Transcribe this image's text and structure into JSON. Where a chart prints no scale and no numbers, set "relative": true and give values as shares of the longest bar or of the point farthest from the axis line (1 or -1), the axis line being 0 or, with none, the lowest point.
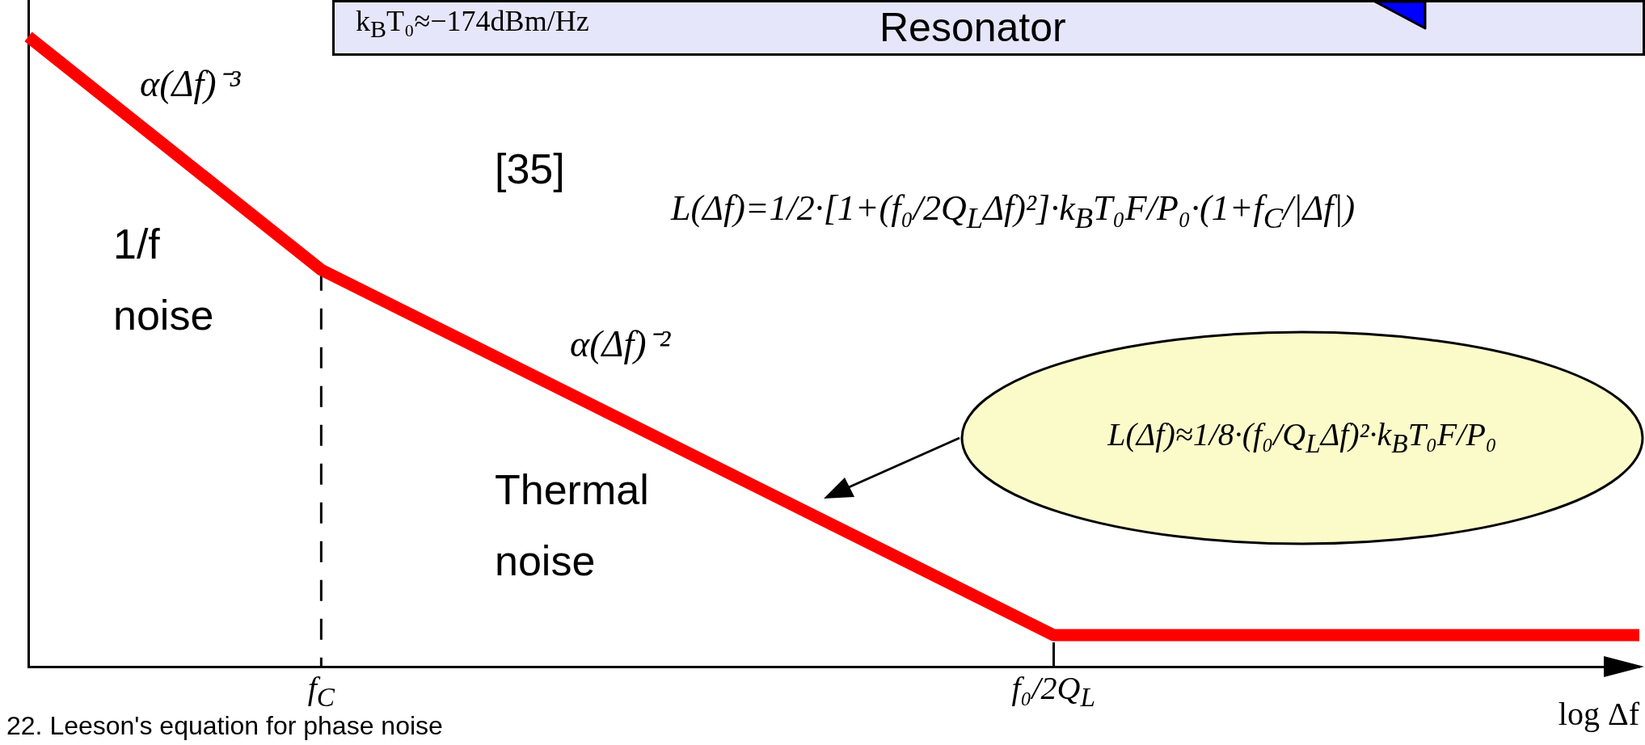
{
  "chart_data": {
    "type": "line",
    "relative": true,
    "xlabel": "log Δf",
    "categories": [
      null,
      null,
      "f$_{C}$",
      null,
      null,
      null,
      null,
      "f₀/2Q$_{L}$",
      null,
      null,
      null,
      null
    ],
    "values": [
      1,
      0.815,
      0.63,
      0.514,
      0.398,
      0.282,
      0.166,
      0.05,
      0.05,
      0.05,
      0.05,
      0.05
    ],
    "color": "#ff0000",
    "marker": "none",
    "ref_lines": [
      {
        "axis": "x",
        "value": "f$_{C}$",
        "line_style": "dashed",
        "color": "#000000"
      }
    ],
    "annotations": [
      "k$_{B}$T₀≈−174dBm/Hz",
      "Resonator",
      "α(Δf)⁻³",
      "[35]",
      "L(Δf)=1/2·[1+(f₀/2Q$_{L}$Δf)²]·k$_{B}$T₀F/P₀·(1+f$_{C}$/|Δf|)",
      "1/f\nnoise",
      "α(Δf)⁻²",
      "Thermal\nnoise",
      "L(Δf)≈1/8·(f₀/Q$_{L}$Δf)²·k$_{B}$T₀F/P₀",
      "22. Leeson's equation for phase noise"
    ]
  }
}
